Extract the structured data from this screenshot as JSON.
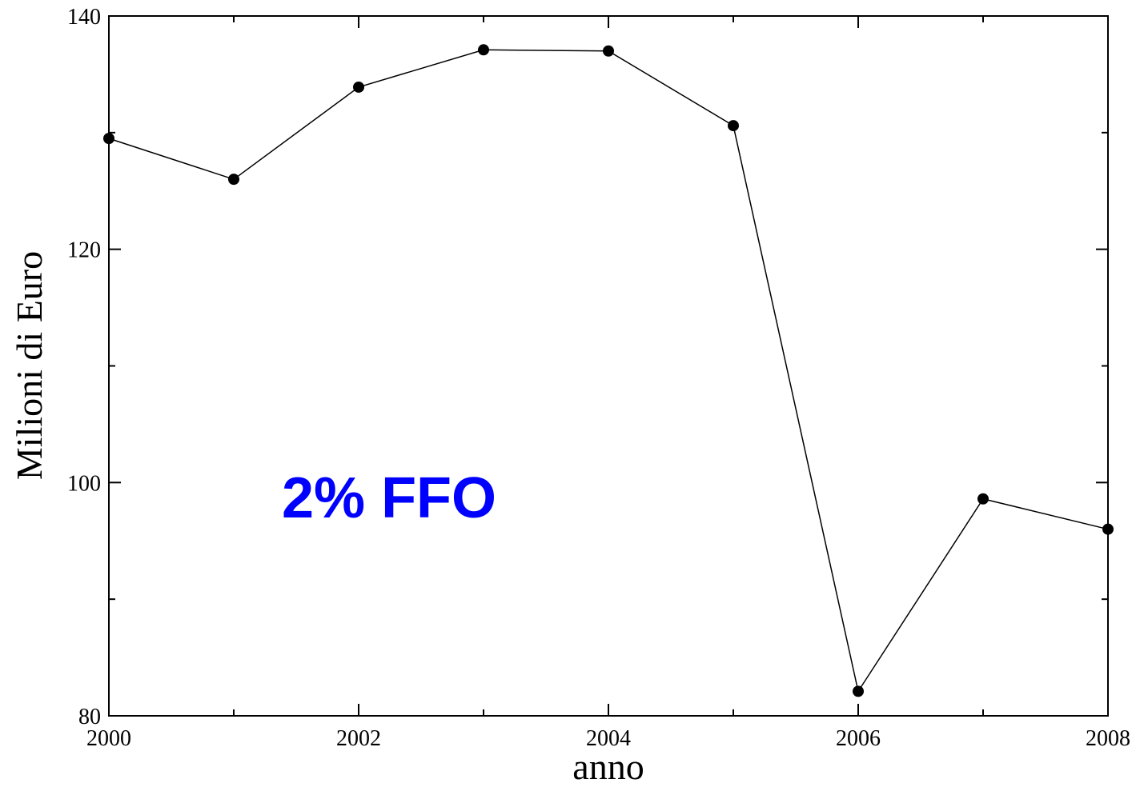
{
  "chart_data": {
    "type": "line",
    "title": "",
    "xlabel": "anno",
    "ylabel": "Milioni di Euro",
    "x": [
      2000,
      2001,
      2002,
      2003,
      2004,
      2005,
      2006,
      2007,
      2008
    ],
    "series": [
      {
        "values": [
          129.5,
          126.0,
          133.9,
          137.1,
          137.0,
          130.6,
          82.1,
          98.6,
          96.0
        ]
      }
    ],
    "xlim": [
      2000,
      2008
    ],
    "ylim": [
      80,
      140
    ],
    "x_ticks": [
      2000,
      2002,
      2004,
      2006,
      2008
    ],
    "x_minor_ticks": [
      2001,
      2003,
      2005,
      2007
    ],
    "y_ticks": [
      80,
      100,
      120,
      140
    ],
    "y_minor_ticks": [
      90,
      110,
      130
    ],
    "grid": false,
    "legend": "none",
    "line_color": "#000000",
    "marker": "filled-circle",
    "annotation": {
      "text": "2% FFO",
      "color": "#0000ff"
    }
  }
}
